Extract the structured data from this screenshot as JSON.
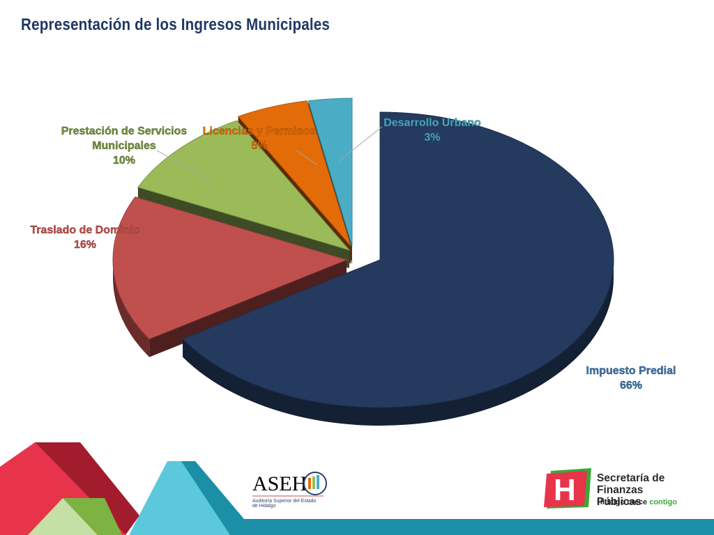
{
  "page": {
    "title": "Representación de los Ingresos Municipales"
  },
  "chart_data": {
    "type": "pie",
    "style": "3d-exploded",
    "title": "",
    "slices": [
      {
        "label": "Impuesto Predial",
        "percent_label": "66%",
        "value": 66,
        "color": "#243A5E",
        "label_color": "#3E74A8"
      },
      {
        "label": "Traslado de Dominio",
        "percent_label": "16%",
        "value": 16,
        "color": "#C0504D",
        "label_color": "#C0504D"
      },
      {
        "label": "Prestación de Servicios Municipales",
        "percent_label": "10%",
        "value": 10,
        "color": "#9BBB59",
        "label_color": "#76923C"
      },
      {
        "label": "Licencias y Permisos",
        "percent_label": "5%",
        "value": 5,
        "color": "#E36C09",
        "label_color": "#E36C09"
      },
      {
        "label": "Desarrollo Urbano",
        "percent_label": "3%",
        "value": 3,
        "color": "#4BACC6",
        "label_color": "#4BACC6"
      }
    ]
  },
  "footer": {
    "aseh_logo": {
      "name": "ASEH",
      "subtitle": "Auditoría Superior del Estado de Hidalgo"
    },
    "sfp_logo": {
      "name_line1": "Secretaría de",
      "name_line2": "Finanzas Públicas",
      "slogan_part1": "Hidalgo crece ",
      "slogan_part2": "contigo",
      "mark": "H"
    },
    "colors": {
      "red": "#E8344B",
      "darkred": "#A31C2E",
      "cyan": "#5BC8DB",
      "teal": "#1B8FA6",
      "green": "#7CB342"
    }
  }
}
